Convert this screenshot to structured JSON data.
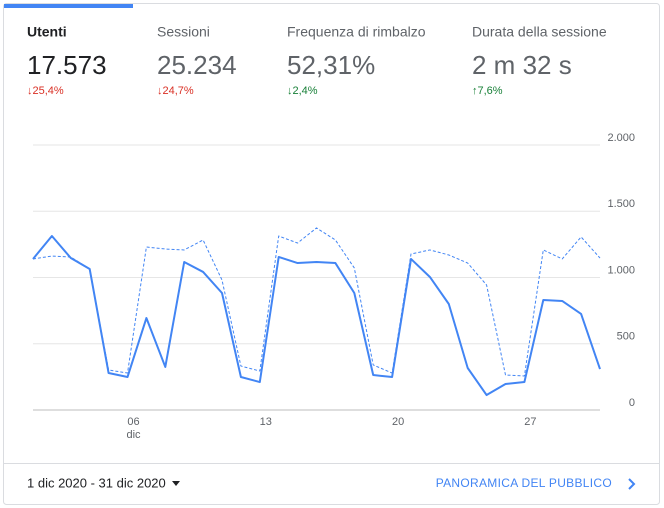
{
  "metrics": [
    {
      "label": "Utenti",
      "value": "17.573",
      "change": "↓25,4%",
      "color": "#d93025"
    },
    {
      "label": "Sessioni",
      "value": "25.234",
      "change": "↓24,7%",
      "color": "#d93025"
    },
    {
      "label": "Frequenza di rimbalzo",
      "value": "52,31%",
      "change": "↓2,4%",
      "color": "#188038"
    },
    {
      "label": "Durata della sessione",
      "value": "2 m 32 s",
      "change": "↑7,6%",
      "color": "#188038"
    }
  ],
  "chart_data": {
    "type": "line",
    "categories": [
      null,
      null,
      null,
      null,
      null,
      "06",
      null,
      null,
      null,
      null,
      null,
      null,
      "13",
      null,
      null,
      null,
      null,
      null,
      null,
      "20",
      null,
      null,
      null,
      null,
      null,
      null,
      "27",
      null,
      null,
      null,
      null
    ],
    "x_month_label": "dic",
    "series": [
      {
        "color": "#4285f4",
        "values": [
          1140,
          1313,
          1147,
          1064,
          279,
          249,
          694,
          325,
          1117,
          1042,
          883,
          249,
          211,
          1155,
          1109,
          1117,
          1109,
          883,
          264,
          249,
          1140,
          1004,
          800,
          317,
          113,
          196,
          211,
          830,
          823,
          725,
          309
        ]
      },
      {
        "color": "#4285f4",
        "dashed": true,
        "values": [
          1140,
          1162,
          1155,
          1064,
          302,
          279,
          1230,
          1215,
          1208,
          1283,
          981,
          332,
          294,
          1313,
          1260,
          1374,
          1283,
          1072,
          340,
          279,
          1177,
          1208,
          1170,
          1109,
          943,
          264,
          257,
          1208,
          1140,
          1306,
          1147
        ]
      }
    ],
    "ylim": [
      0,
      2000
    ],
    "yticks": [
      0,
      500,
      {
        "value": 1000,
        "label": "1.000"
      },
      {
        "value": 1500,
        "label": "1.500"
      },
      {
        "value": 2000,
        "label": "2.000"
      }
    ],
    "grid": true
  },
  "footer": {
    "date_range": "1 dic 2020 - 31 dic 2020",
    "link": "PANORAMICA DEL PUBBLICO"
  }
}
